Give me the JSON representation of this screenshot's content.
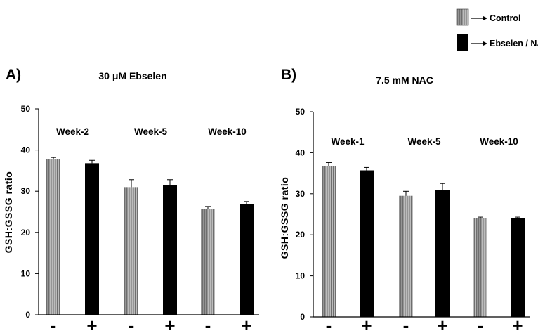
{
  "legend": [
    {
      "label": "Control",
      "color": "#9c9c9c",
      "pattern": "vertical-stripes"
    },
    {
      "label": "Ebselen / NAC",
      "color": "#000000",
      "pattern": "solid"
    }
  ],
  "chart_data": [
    {
      "type": "bar",
      "panel": "A)",
      "title": "30 μM Ebselen",
      "ylabel": "GSH:GSSG ratio",
      "xlabel": "",
      "ylim": [
        0,
        50
      ],
      "yticks": [
        0,
        10,
        20,
        30,
        40,
        50
      ],
      "groups": [
        "Week-2",
        "Week-5",
        "Week-10"
      ],
      "bar_labels": [
        "-",
        "+",
        "-",
        "+",
        "-",
        "+"
      ],
      "series": [
        {
          "name": "Control",
          "values": [
            37.8,
            31.0,
            25.7
          ],
          "errors": [
            0.4,
            1.8,
            0.6
          ]
        },
        {
          "name": "Ebselen / NAC",
          "values": [
            36.8,
            31.4,
            26.8
          ],
          "errors": [
            0.7,
            1.4,
            0.7
          ]
        }
      ]
    },
    {
      "type": "bar",
      "panel": "B)",
      "title": "7.5 mM NAC",
      "ylabel": "GSH:GSSG ratio",
      "xlabel": "",
      "ylim": [
        0,
        50
      ],
      "yticks": [
        0,
        10,
        20,
        30,
        40,
        50
      ],
      "groups": [
        "Week-1",
        "Week-5",
        "Week-10"
      ],
      "bar_labels": [
        "-",
        "+",
        "-",
        "+",
        "-",
        "+"
      ],
      "series": [
        {
          "name": "Control",
          "values": [
            36.8,
            29.5,
            24.1
          ],
          "errors": [
            0.8,
            1.1,
            0.2
          ]
        },
        {
          "name": "Ebselen / NAC",
          "values": [
            35.7,
            30.9,
            24.1
          ],
          "errors": [
            0.7,
            1.6,
            0.2
          ]
        }
      ]
    }
  ]
}
